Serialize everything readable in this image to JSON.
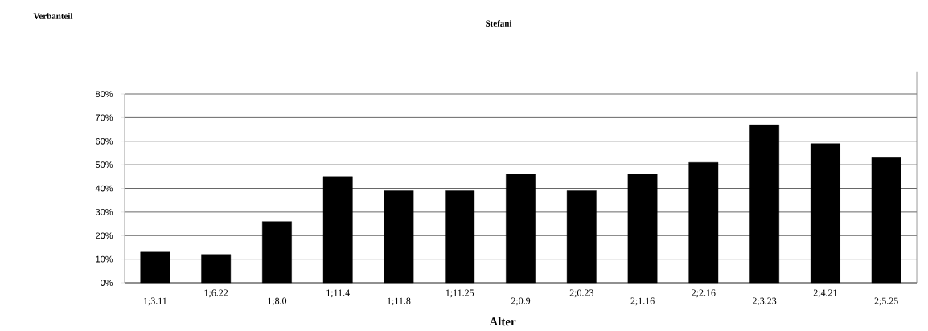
{
  "chart_data": {
    "type": "bar",
    "title": "Stefani",
    "xlabel": "Alter",
    "annotations": [
      "Verbanteil"
    ],
    "categories": [
      "1;3.11",
      "1;6.22",
      "1;8.0",
      "1;11.4",
      "1;11.8",
      "1;11.25",
      "2;0.9",
      "2;0.23",
      "2;1.16",
      "2;2.16",
      "2;3.23",
      "2;4.21",
      "2;5.25"
    ],
    "values": [
      13,
      12,
      26,
      45,
      39,
      39,
      46,
      39,
      46,
      51,
      67,
      59,
      53
    ],
    "color": "#000000",
    "ylim": [
      0,
      80
    ],
    "yticks": [
      {
        "value": 0,
        "label": "0%"
      },
      {
        "value": 10,
        "label": "10%"
      },
      {
        "value": 20,
        "label": "20%"
      },
      {
        "value": 30,
        "label": "30%"
      },
      {
        "value": 40,
        "label": "40%"
      },
      {
        "value": 50,
        "label": "50%"
      },
      {
        "value": 60,
        "label": "60%"
      },
      {
        "value": 70,
        "label": "70%"
      },
      {
        "value": 80,
        "label": "80%"
      }
    ],
    "grid": "y"
  }
}
